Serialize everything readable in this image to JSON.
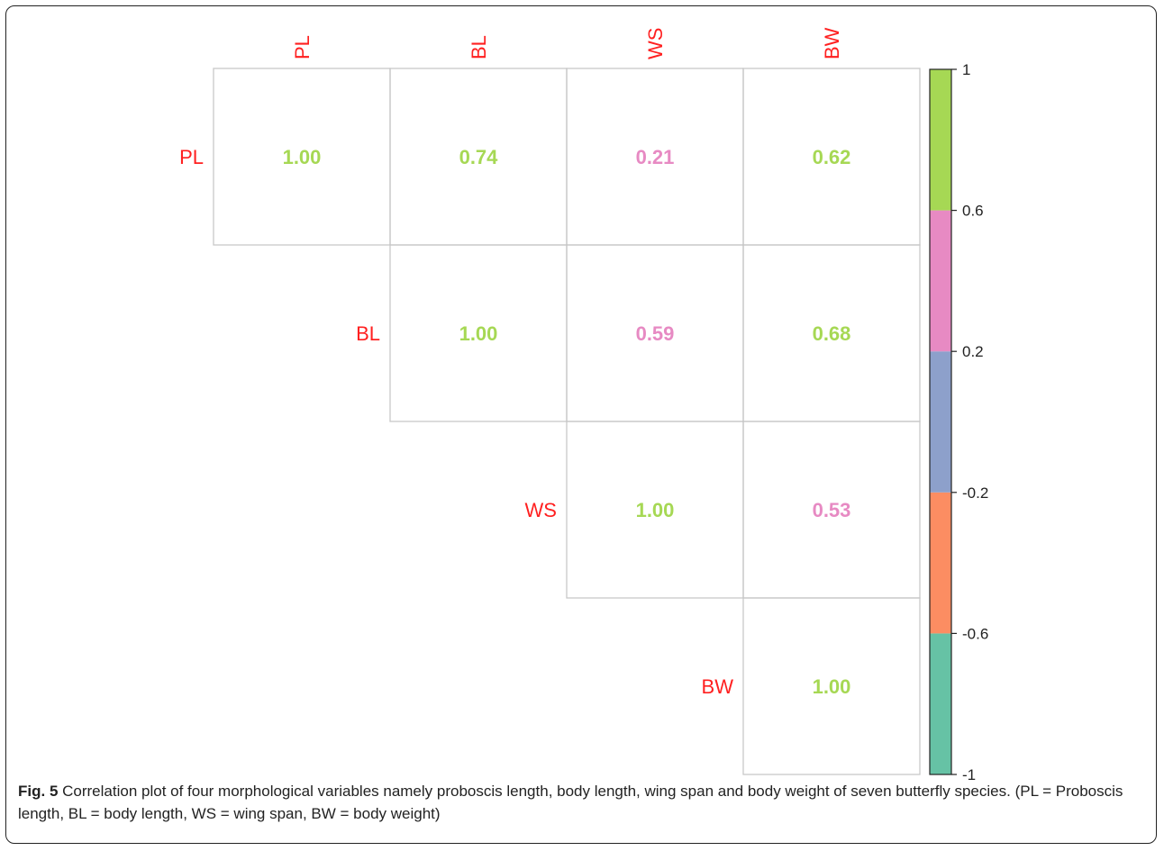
{
  "chart_data": {
    "type": "heatmap",
    "variables": [
      "PL",
      "BL",
      "WS",
      "BW"
    ],
    "matrix": [
      [
        1.0,
        0.74,
        0.21,
        0.62
      ],
      [
        null,
        1.0,
        0.59,
        0.68
      ],
      [
        null,
        null,
        1.0,
        0.53
      ],
      [
        null,
        null,
        null,
        1.0
      ]
    ],
    "cell_labels": [
      [
        "1.00",
        "0.74",
        "0.21",
        "0.62"
      ],
      [
        "",
        "1.00",
        "0.59",
        "0.68"
      ],
      [
        "",
        "",
        "1.00",
        "0.53"
      ],
      [
        "",
        "",
        "",
        "1.00"
      ]
    ],
    "layout": "upper-triangle",
    "label_color": "#ff2020",
    "colorbar": {
      "range": [
        -1,
        1
      ],
      "breaks": [
        -1,
        -0.6,
        -0.2,
        0.2,
        0.6,
        1
      ],
      "tick_labels": [
        "-1",
        "-0.6",
        "-0.2",
        "0.2",
        "0.6",
        "1"
      ],
      "colors": [
        "#66c2a5",
        "#fc8d62",
        "#8da0cb",
        "#e78ac3",
        "#a6d854"
      ],
      "placement": "right"
    }
  },
  "caption": {
    "label": "Fig. 5",
    "text": " Correlation plot of four morphological variables namely proboscis length, body length, wing span and body weight of seven butterfly species. (PL = Proboscis length, BL = body length, WS = wing span, BW = body weight)"
  }
}
